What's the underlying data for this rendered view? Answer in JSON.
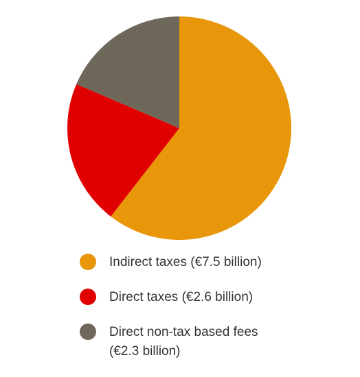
{
  "chart_data": {
    "type": "pie",
    "title": "",
    "categories": [
      "Indirect taxes (€7.5 billion)",
      "Direct taxes (€2.6 billion)",
      "Direct non-tax based fees\n(€2.3 billion)"
    ],
    "values": [
      7.5,
      2.6,
      2.3
    ],
    "unit": "€ billion",
    "colors": [
      "#E8960A",
      "#E10000",
      "#6E685A"
    ],
    "start": "top",
    "direction": "clockwise",
    "legend_position": "bottom"
  }
}
